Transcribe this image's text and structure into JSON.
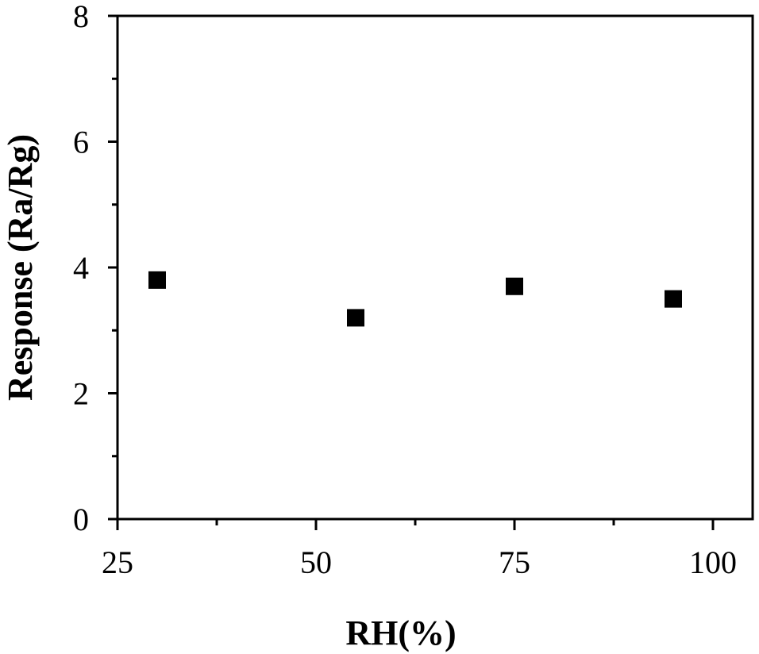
{
  "chart_data": {
    "type": "scatter",
    "x_label": "RH(%)",
    "y_label": "Response (Ra/Rg)",
    "x": [
      30,
      55,
      75,
      95
    ],
    "values": [
      3.8,
      3.2,
      3.7,
      3.5
    ],
    "color": "#000000",
    "marker": "square",
    "xlim": [
      25,
      105
    ],
    "xticks": [
      25,
      50,
      75,
      100
    ],
    "ylim": [
      0,
      8
    ],
    "yticks": [
      0,
      2,
      4,
      6,
      8
    ],
    "grid": false
  }
}
